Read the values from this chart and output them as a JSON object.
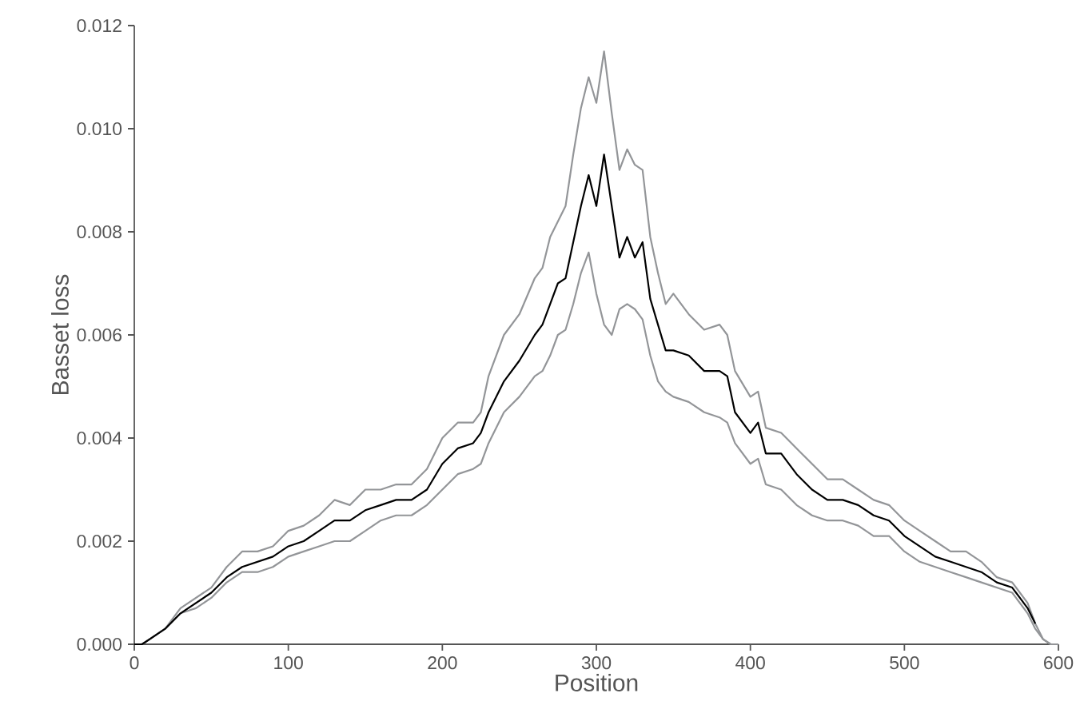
{
  "chart_data": {
    "type": "line",
    "xlabel": "Position",
    "ylabel": "Basset loss",
    "x": [
      0,
      5,
      10,
      20,
      30,
      40,
      50,
      60,
      70,
      80,
      90,
      100,
      110,
      120,
      130,
      140,
      150,
      160,
      170,
      180,
      190,
      200,
      210,
      220,
      225,
      230,
      240,
      250,
      260,
      265,
      270,
      275,
      280,
      285,
      290,
      295,
      300,
      305,
      310,
      315,
      320,
      325,
      330,
      335,
      340,
      345,
      350,
      360,
      370,
      380,
      385,
      390,
      400,
      405,
      410,
      420,
      430,
      440,
      450,
      460,
      470,
      480,
      490,
      500,
      510,
      520,
      530,
      540,
      550,
      560,
      570,
      580,
      585,
      590,
      595,
      600
    ],
    "series": [
      {
        "color": "#939598",
        "values": [
          0,
          0,
          0.0001,
          0.0003,
          0.0007,
          0.0009,
          0.0011,
          0.0015,
          0.0018,
          0.0018,
          0.0019,
          0.0022,
          0.0023,
          0.0025,
          0.0028,
          0.0027,
          0.003,
          0.003,
          0.0031,
          0.0031,
          0.0034,
          0.004,
          0.0043,
          0.0043,
          0.0045,
          0.0052,
          0.006,
          0.0064,
          0.0071,
          0.0073,
          0.0079,
          0.0082,
          0.0085,
          0.0095,
          0.0104,
          0.011,
          0.0105,
          0.0115,
          0.0103,
          0.0092,
          0.0096,
          0.0093,
          0.0092,
          0.0079,
          0.0072,
          0.0066,
          0.0068,
          0.0064,
          0.0061,
          0.0062,
          0.006,
          0.0053,
          0.0048,
          0.0049,
          0.0042,
          0.0041,
          0.0038,
          0.0035,
          0.0032,
          0.0032,
          0.003,
          0.0028,
          0.0027,
          0.0024,
          0.0022,
          0.002,
          0.0018,
          0.0018,
          0.0016,
          0.0013,
          0.0012,
          0.0008,
          0.0004,
          0.0001,
          0,
          0
        ]
      },
      {
        "color": "#939598",
        "values": [
          0,
          0,
          0.0001,
          0.0003,
          0.0006,
          0.0007,
          0.0009,
          0.0012,
          0.0014,
          0.0014,
          0.0015,
          0.0017,
          0.0018,
          0.0019,
          0.002,
          0.002,
          0.0022,
          0.0024,
          0.0025,
          0.0025,
          0.0027,
          0.003,
          0.0033,
          0.0034,
          0.0035,
          0.0039,
          0.0045,
          0.0048,
          0.0052,
          0.0053,
          0.0056,
          0.006,
          0.0061,
          0.0066,
          0.0072,
          0.0076,
          0.0068,
          0.0062,
          0.006,
          0.0065,
          0.0066,
          0.0065,
          0.0063,
          0.0056,
          0.0051,
          0.0049,
          0.0048,
          0.0047,
          0.0045,
          0.0044,
          0.0043,
          0.0039,
          0.0035,
          0.0036,
          0.0031,
          0.003,
          0.0027,
          0.0025,
          0.0024,
          0.0024,
          0.0023,
          0.0021,
          0.0021,
          0.0018,
          0.0016,
          0.0015,
          0.0014,
          0.0013,
          0.0012,
          0.0011,
          0.001,
          0.0006,
          0.0003,
          0.0001,
          0,
          0
        ]
      },
      {
        "color": "#000000",
        "values": [
          0,
          0,
          0.0001,
          0.0003,
          0.0006,
          0.0008,
          0.001,
          0.0013,
          0.0015,
          0.0016,
          0.0017,
          0.0019,
          0.002,
          0.0022,
          0.0024,
          0.0024,
          0.0026,
          0.0027,
          0.0028,
          0.0028,
          0.003,
          0.0035,
          0.0038,
          0.0039,
          0.0041,
          0.0045,
          0.0051,
          0.0055,
          0.006,
          0.0062,
          0.0066,
          0.007,
          0.0071,
          0.0078,
          0.0085,
          0.0091,
          0.0085,
          0.0095,
          0.0085,
          0.0075,
          0.0079,
          0.0075,
          0.0078,
          0.0067,
          0.0062,
          0.0057,
          0.0057,
          0.0056,
          0.0053,
          0.0053,
          0.0052,
          0.0045,
          0.0041,
          0.0043,
          0.0037,
          0.0037,
          0.0033,
          0.003,
          0.0028,
          0.0028,
          0.0027,
          0.0025,
          0.0024,
          0.0021,
          0.0019,
          0.0017,
          0.0016,
          0.0015,
          0.0014,
          0.0012,
          0.0011,
          0.0007,
          0.0004,
          null,
          null,
          null
        ]
      }
    ],
    "xlim": [
      0,
      600
    ],
    "xticks": [
      0,
      100,
      200,
      300,
      400,
      500,
      600
    ],
    "ylim": [
      0,
      0.012
    ],
    "yticks": [
      {
        "value": 0,
        "label": "0.000"
      },
      {
        "value": 0.002,
        "label": "0.002"
      },
      {
        "value": 0.004,
        "label": "0.004"
      },
      {
        "value": 0.006,
        "label": "0.006"
      },
      {
        "value": 0.008,
        "label": "0.008"
      },
      {
        "value": 0.01,
        "label": "0.010"
      },
      {
        "value": 0.012,
        "label": "0.012"
      }
    ]
  }
}
